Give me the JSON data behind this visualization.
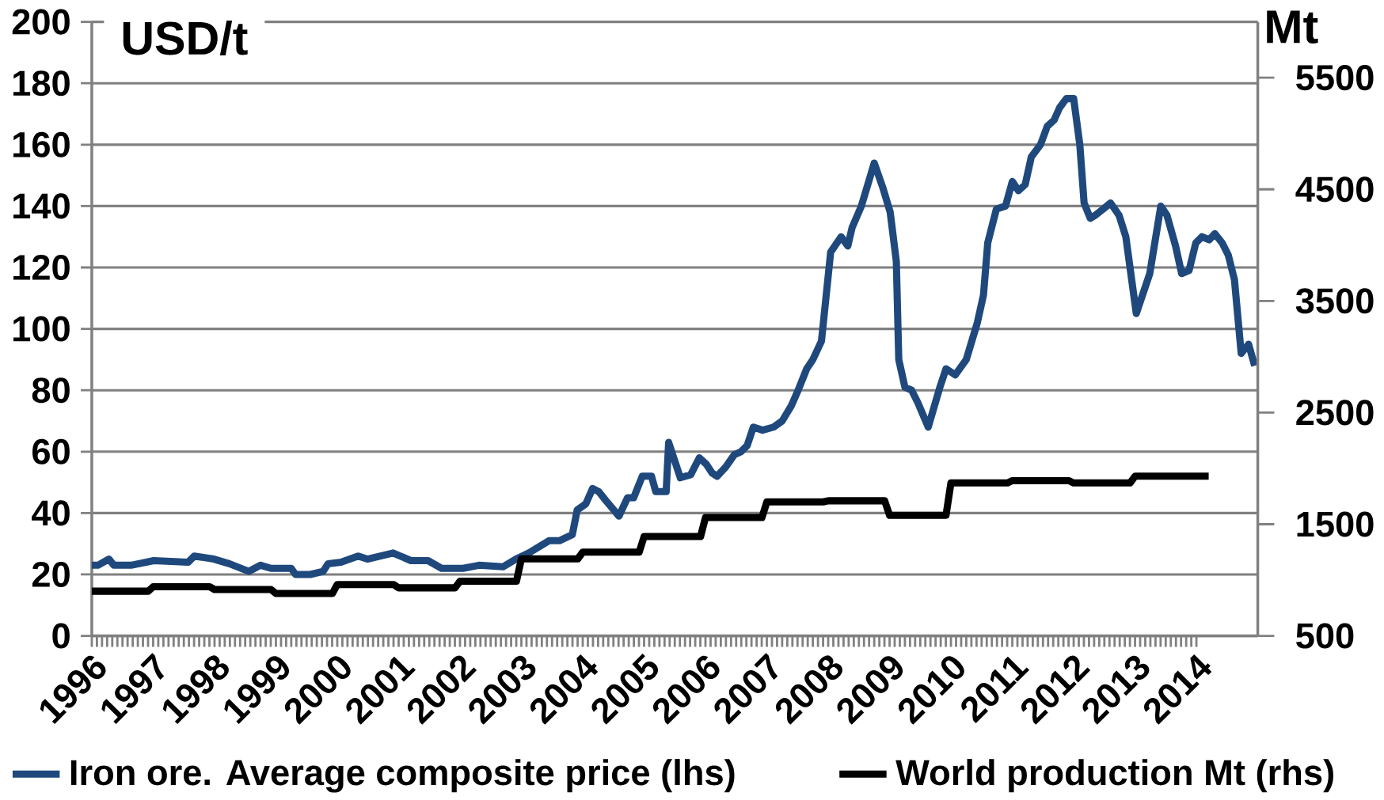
{
  "chart_data": {
    "type": "line",
    "ylabel": "USD/t",
    "y2label": "Mt",
    "xlim": [
      1996,
      2015
    ],
    "xticks": [
      1996,
      1997,
      1998,
      1999,
      2000,
      2001,
      2002,
      2003,
      2004,
      2005,
      2006,
      2007,
      2008,
      2009,
      2010,
      2011,
      2012,
      2013,
      2014
    ],
    "ylim": [
      0,
      200
    ],
    "yticks": [
      0,
      20,
      40,
      60,
      80,
      100,
      120,
      140,
      160,
      180,
      200
    ],
    "y2lim": [
      500,
      6000
    ],
    "y2ticks": [
      500,
      1500,
      2500,
      3500,
      4500,
      5500
    ],
    "grid": "y",
    "legend": "bottom",
    "series": [
      {
        "name": "Iron ore. Average composite price (lhs)",
        "color": "#1f497d",
        "x": [
          1996.0,
          1996.1,
          1996.28,
          1996.36,
          1996.64,
          1997.01,
          1997.57,
          1997.67,
          1997.99,
          1998.24,
          1998.56,
          1998.75,
          1998.92,
          1999.25,
          1999.32,
          1999.56,
          1999.77,
          1999.85,
          2000.06,
          2000.34,
          2000.49,
          2000.91,
          2001.2,
          2001.48,
          2001.7,
          2002.05,
          2002.31,
          2002.7,
          2002.91,
          2003.12,
          2003.45,
          2003.62,
          2003.83,
          2003.91,
          2004.05,
          2004.16,
          2004.26,
          2004.38,
          2004.59,
          2004.73,
          2004.83,
          2004.97,
          2005.12,
          2005.19,
          2005.36,
          2005.4,
          2005.59,
          2005.76,
          2005.9,
          2006.01,
          2006.11,
          2006.19,
          2006.33,
          2006.47,
          2006.58,
          2006.68,
          2006.78,
          2006.93,
          2007.11,
          2007.25,
          2007.4,
          2007.51,
          2007.65,
          2007.75,
          2007.89,
          2008.04,
          2008.21,
          2008.32,
          2008.39,
          2008.54,
          2008.75,
          2008.89,
          2009.01,
          2009.11,
          2009.15,
          2009.25,
          2009.36,
          2009.46,
          2009.63,
          2009.82,
          2009.92,
          2010.07,
          2010.25,
          2010.43,
          2010.53,
          2010.6,
          2010.74,
          2010.89,
          2011.0,
          2011.1,
          2011.21,
          2011.31,
          2011.46,
          2011.57,
          2011.68,
          2011.77,
          2011.88,
          2012.0,
          2012.1,
          2012.17,
          2012.27,
          2012.35,
          2012.48,
          2012.6,
          2012.74,
          2012.85,
          2013.02,
          2013.24,
          2013.42,
          2013.52,
          2013.66,
          2013.76,
          2013.88,
          2013.99,
          2014.09,
          2014.21,
          2014.3,
          2014.42,
          2014.52,
          2014.62,
          2014.73,
          2014.85,
          2014.95
        ],
        "values": [
          23,
          23,
          25,
          23,
          23,
          24.5,
          24,
          26,
          25,
          23.5,
          21,
          23,
          22,
          22,
          20,
          20,
          21,
          23.5,
          24,
          26,
          25,
          27,
          24.5,
          24.5,
          22,
          22,
          23,
          22.5,
          25,
          27,
          31,
          31,
          33,
          41,
          43,
          48,
          47,
          44,
          39,
          45,
          45,
          52,
          52,
          47,
          47,
          63,
          51.5,
          52.5,
          58,
          56,
          53,
          52,
          55,
          59,
          60,
          62,
          68,
          67,
          68,
          70,
          75,
          80,
          87,
          90,
          96,
          125,
          130,
          127,
          133,
          140,
          154,
          146,
          138,
          122,
          90,
          81,
          80,
          76,
          68,
          81,
          87,
          85,
          90,
          102,
          111,
          128,
          139,
          140,
          148,
          145,
          147,
          156,
          160,
          166,
          168,
          172,
          175,
          175,
          160,
          141,
          136,
          137,
          139,
          141,
          137,
          130,
          105,
          118,
          140,
          137,
          127,
          118,
          119,
          128,
          130,
          129,
          131,
          128,
          124,
          116,
          92,
          95,
          88
        ]
      },
      {
        "name": "World production Mt (rhs)",
        "color": "#000000",
        "axis": "y2",
        "x": [
          1996.0,
          1996.92,
          1997.0,
          1997.92,
          1998.0,
          1998.92,
          1999.0,
          1999.92,
          2000.0,
          2000.92,
          2001.0,
          2001.92,
          2002.0,
          2002.92,
          2003.0,
          2003.92,
          2004.0,
          2004.92,
          2005.0,
          2005.92,
          2006.0,
          2006.92,
          2007.0,
          2007.92,
          2008.0,
          2008.92,
          2009.0,
          2009.92,
          2010.0,
          2010.92,
          2011.0,
          2011.92,
          2012.0,
          2012.92,
          2013.0,
          2014.2
        ],
        "values": [
          900,
          900,
          940,
          940,
          915,
          915,
          880,
          880,
          960,
          960,
          930,
          930,
          990,
          990,
          1190,
          1190,
          1250,
          1250,
          1390,
          1390,
          1560,
          1560,
          1700,
          1700,
          1710,
          1710,
          1580,
          1580,
          1870,
          1870,
          1890,
          1890,
          1870,
          1870,
          1930,
          1930
        ]
      }
    ]
  }
}
